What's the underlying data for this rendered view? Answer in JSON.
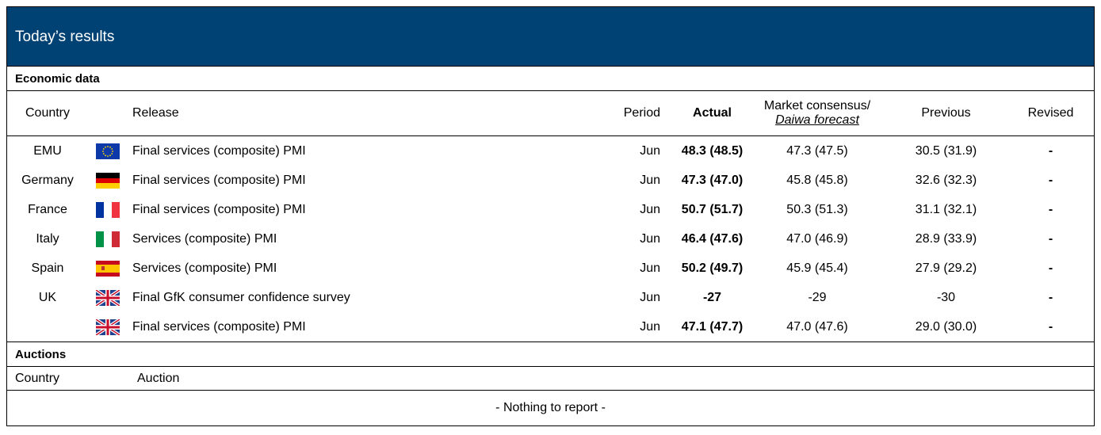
{
  "header": {
    "title": "Today’s results"
  },
  "economic": {
    "title": "Economic data",
    "columns": {
      "country": "Country",
      "release": "Release",
      "period": "Period",
      "actual": "Actual",
      "consensus": "Market consensus/",
      "forecast": "Daiwa forecast",
      "previous": "Previous",
      "revised": "Revised"
    },
    "rows": [
      {
        "country": "EMU",
        "release": "Final services (composite) PMI",
        "period": "Jun",
        "actual": "48.3 (48.5)",
        "consensus": "47.3 (47.5)",
        "previous": "30.5 (31.9)",
        "revised": "-"
      },
      {
        "country": "Germany",
        "release": "Final services (composite) PMI",
        "period": "Jun",
        "actual": "47.3 (47.0)",
        "consensus": "45.8 (45.8)",
        "previous": "32.6 (32.3)",
        "revised": "-"
      },
      {
        "country": "France",
        "release": "Final services (composite) PMI",
        "period": "Jun",
        "actual": "50.7 (51.7)",
        "consensus": "50.3 (51.3)",
        "previous": "31.1 (32.1)",
        "revised": "-"
      },
      {
        "country": "Italy",
        "release": "Services (composite) PMI",
        "period": "Jun",
        "actual": "46.4 (47.6)",
        "consensus": "47.0 (46.9)",
        "previous": "28.9 (33.9)",
        "revised": "-"
      },
      {
        "country": "Spain",
        "release": "Services (composite) PMI",
        "period": "Jun",
        "actual": "50.2 (49.7)",
        "consensus": "45.9 (45.4)",
        "previous": "27.9 (29.2)",
        "revised": "-"
      },
      {
        "country": "UK",
        "release": "Final GfK consumer confidence survey",
        "period": "Jun",
        "actual": "-27",
        "consensus": "-29",
        "previous": "-30",
        "revised": "-"
      },
      {
        "release": "Final services (composite) PMI",
        "period": "Jun",
        "actual": "47.1 (47.7)",
        "consensus": "47.0 (47.6)",
        "previous": "29.0 (30.0)",
        "revised": "-"
      }
    ]
  },
  "auctions": {
    "title": "Auctions",
    "columns": {
      "country": "Country",
      "auction": "Auction"
    },
    "message": "- Nothing to report -"
  }
}
